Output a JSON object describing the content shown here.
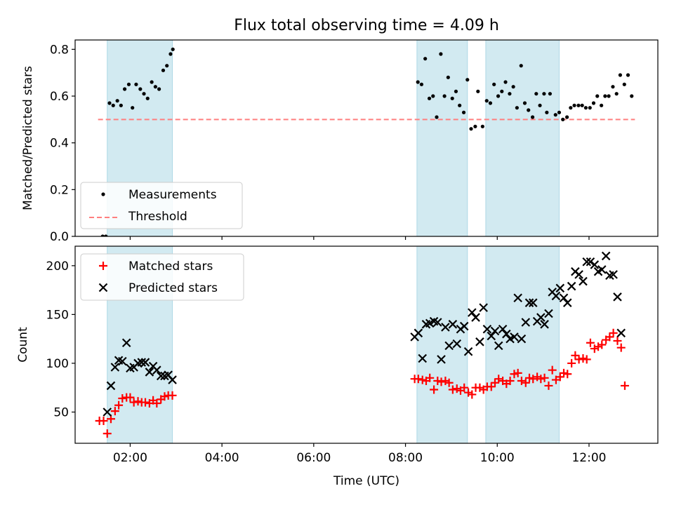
{
  "title": "Flux total observing time = 4.09 h",
  "colors": {
    "band": "#add8e6",
    "measurement": "#000000",
    "threshold": "#ff7f7f",
    "matched": "#ff0000",
    "predicted": "#000000"
  },
  "chart_data": [
    {
      "type": "scatter",
      "ylabel": "Matched/Predicted stars",
      "xlim": [
        0.8,
        13.5
      ],
      "ylim": [
        0,
        0.84
      ],
      "yticks": [
        0,
        0.2,
        0.4,
        0.6,
        0.8
      ],
      "ytick_labels": [
        "0.0",
        "0.2",
        "0.4",
        "0.6",
        "0.8"
      ],
      "bands": [
        [
          1.5,
          2.92
        ],
        [
          8.25,
          9.35
        ],
        [
          9.75,
          11.35
        ]
      ],
      "threshold": 0.5,
      "legend": {
        "position": "lower-left",
        "entries": [
          "Measurements",
          "Threshold"
        ]
      },
      "series": [
        {
          "name": "Measurements",
          "points": [
            [
              1.4,
              0.0
            ],
            [
              1.47,
              0.0
            ],
            [
              1.55,
              0.57
            ],
            [
              1.63,
              0.56
            ],
            [
              1.72,
              0.58
            ],
            [
              1.8,
              0.56
            ],
            [
              1.88,
              0.63
            ],
            [
              1.97,
              0.65
            ],
            [
              2.05,
              0.55
            ],
            [
              2.13,
              0.65
            ],
            [
              2.22,
              0.63
            ],
            [
              2.3,
              0.61
            ],
            [
              2.38,
              0.59
            ],
            [
              2.47,
              0.66
            ],
            [
              2.55,
              0.64
            ],
            [
              2.63,
              0.63
            ],
            [
              2.72,
              0.71
            ],
            [
              2.8,
              0.73
            ],
            [
              2.88,
              0.78
            ],
            [
              2.93,
              0.8
            ],
            [
              8.27,
              0.66
            ],
            [
              8.35,
              0.65
            ],
            [
              8.43,
              0.76
            ],
            [
              8.52,
              0.59
            ],
            [
              8.6,
              0.6
            ],
            [
              8.68,
              0.51
            ],
            [
              8.77,
              0.78
            ],
            [
              8.85,
              0.6
            ],
            [
              8.93,
              0.68
            ],
            [
              9.02,
              0.59
            ],
            [
              9.1,
              0.62
            ],
            [
              9.18,
              0.56
            ],
            [
              9.27,
              0.53
            ],
            [
              9.35,
              0.67
            ],
            [
              9.43,
              0.46
            ],
            [
              9.52,
              0.47
            ],
            [
              9.58,
              0.62
            ],
            [
              9.68,
              0.47
            ],
            [
              9.77,
              0.58
            ],
            [
              9.85,
              0.57
            ],
            [
              9.93,
              0.65
            ],
            [
              10.02,
              0.6
            ],
            [
              10.1,
              0.62
            ],
            [
              10.18,
              0.66
            ],
            [
              10.27,
              0.61
            ],
            [
              10.35,
              0.64
            ],
            [
              10.43,
              0.55
            ],
            [
              10.52,
              0.73
            ],
            [
              10.6,
              0.57
            ],
            [
              10.68,
              0.54
            ],
            [
              10.77,
              0.51
            ],
            [
              10.85,
              0.61
            ],
            [
              10.93,
              0.56
            ],
            [
              11.02,
              0.61
            ],
            [
              11.08,
              0.53
            ],
            [
              11.15,
              0.61
            ],
            [
              11.27,
              0.52
            ],
            [
              11.35,
              0.53
            ],
            [
              11.43,
              0.5
            ],
            [
              11.52,
              0.51
            ],
            [
              11.6,
              0.55
            ],
            [
              11.68,
              0.56
            ],
            [
              11.77,
              0.56
            ],
            [
              11.85,
              0.56
            ],
            [
              11.93,
              0.55
            ],
            [
              12.02,
              0.55
            ],
            [
              12.1,
              0.57
            ],
            [
              12.18,
              0.6
            ],
            [
              12.27,
              0.56
            ],
            [
              12.35,
              0.6
            ],
            [
              12.43,
              0.6
            ],
            [
              12.52,
              0.64
            ],
            [
              12.6,
              0.61
            ],
            [
              12.68,
              0.69
            ],
            [
              12.77,
              0.65
            ],
            [
              12.85,
              0.69
            ],
            [
              12.93,
              0.6
            ]
          ]
        }
      ]
    },
    {
      "type": "scatter",
      "xlabel": "Time (UTC)",
      "ylabel": "Count",
      "xlim": [
        0.8,
        13.5
      ],
      "ylim": [
        18,
        220
      ],
      "xticks": [
        2,
        4,
        6,
        8,
        10,
        12
      ],
      "xtick_labels": [
        "02:00",
        "04:00",
        "06:00",
        "08:00",
        "10:00",
        "12:00"
      ],
      "yticks": [
        50,
        100,
        150,
        200
      ],
      "ytick_labels": [
        "50",
        "100",
        "150",
        "200"
      ],
      "bands": [
        [
          1.5,
          2.92
        ],
        [
          8.25,
          9.35
        ],
        [
          9.75,
          11.35
        ]
      ],
      "legend": {
        "position": "top-left",
        "entries": [
          "Matched stars",
          "Predicted stars"
        ]
      },
      "series": [
        {
          "name": "Matched stars",
          "marker": "+",
          "points": [
            [
              1.33,
              41
            ],
            [
              1.42,
              41
            ],
            [
              1.5,
              28
            ],
            [
              1.58,
              43
            ],
            [
              1.67,
              51
            ],
            [
              1.75,
              57
            ],
            [
              1.83,
              64
            ],
            [
              1.92,
              65
            ],
            [
              2.0,
              65
            ],
            [
              2.08,
              60
            ],
            [
              2.17,
              61
            ],
            [
              2.25,
              60
            ],
            [
              2.33,
              60
            ],
            [
              2.42,
              59
            ],
            [
              2.5,
              62
            ],
            [
              2.58,
              59
            ],
            [
              2.67,
              63
            ],
            [
              2.75,
              66
            ],
            [
              2.83,
              67
            ],
            [
              2.92,
              67
            ],
            [
              8.2,
              84
            ],
            [
              8.28,
              84
            ],
            [
              8.37,
              83
            ],
            [
              8.45,
              82
            ],
            [
              8.53,
              85
            ],
            [
              8.62,
              73
            ],
            [
              8.7,
              82
            ],
            [
              8.78,
              81
            ],
            [
              8.87,
              82
            ],
            [
              8.95,
              80
            ],
            [
              9.03,
              73
            ],
            [
              9.12,
              74
            ],
            [
              9.2,
              72
            ],
            [
              9.28,
              75
            ],
            [
              9.37,
              70
            ],
            [
              9.45,
              68
            ],
            [
              9.53,
              75
            ],
            [
              9.62,
              75
            ],
            [
              9.7,
              73
            ],
            [
              9.78,
              76
            ],
            [
              9.87,
              76
            ],
            [
              9.95,
              80
            ],
            [
              10.03,
              84
            ],
            [
              10.12,
              82
            ],
            [
              10.2,
              79
            ],
            [
              10.28,
              82
            ],
            [
              10.37,
              89
            ],
            [
              10.45,
              90
            ],
            [
              10.53,
              82
            ],
            [
              10.62,
              80
            ],
            [
              10.7,
              85
            ],
            [
              10.78,
              84
            ],
            [
              10.87,
              86
            ],
            [
              10.95,
              84
            ],
            [
              11.03,
              85
            ],
            [
              11.12,
              77
            ],
            [
              11.2,
              93
            ],
            [
              11.28,
              83
            ],
            [
              11.37,
              86
            ],
            [
              11.45,
              90
            ],
            [
              11.53,
              89
            ],
            [
              11.62,
              100
            ],
            [
              11.7,
              108
            ],
            [
              11.78,
              104
            ],
            [
              11.87,
              105
            ],
            [
              11.95,
              104
            ],
            [
              12.03,
              121
            ],
            [
              12.12,
              115
            ],
            [
              12.2,
              117
            ],
            [
              12.28,
              119
            ],
            [
              12.37,
              124
            ],
            [
              12.45,
              127
            ],
            [
              12.53,
              131
            ],
            [
              12.62,
              123
            ],
            [
              12.7,
              116
            ],
            [
              12.78,
              77
            ]
          ]
        },
        {
          "name": "Predicted stars",
          "marker": "x",
          "points": [
            [
              1.5,
              50
            ],
            [
              1.58,
              77
            ],
            [
              1.67,
              96
            ],
            [
              1.75,
              103
            ],
            [
              1.83,
              102
            ],
            [
              1.92,
              121
            ],
            [
              2.0,
              95
            ],
            [
              2.08,
              96
            ],
            [
              2.17,
              100
            ],
            [
              2.25,
              101
            ],
            [
              2.33,
              101
            ],
            [
              2.42,
              91
            ],
            [
              2.5,
              97
            ],
            [
              2.58,
              93
            ],
            [
              2.67,
              87
            ],
            [
              2.75,
              87
            ],
            [
              2.83,
              88
            ],
            [
              2.92,
              83
            ],
            [
              8.2,
              127
            ],
            [
              8.28,
              131
            ],
            [
              8.37,
              105
            ],
            [
              8.45,
              140
            ],
            [
              8.53,
              141
            ],
            [
              8.62,
              143
            ],
            [
              8.7,
              142
            ],
            [
              8.78,
              104
            ],
            [
              8.87,
              137
            ],
            [
              8.95,
              118
            ],
            [
              9.03,
              140
            ],
            [
              9.12,
              120
            ],
            [
              9.2,
              135
            ],
            [
              9.28,
              138
            ],
            [
              9.37,
              112
            ],
            [
              9.45,
              152
            ],
            [
              9.53,
              147
            ],
            [
              9.62,
              122
            ],
            [
              9.7,
              157
            ],
            [
              9.78,
              135
            ],
            [
              9.87,
              128
            ],
            [
              9.95,
              133
            ],
            [
              10.03,
              118
            ],
            [
              10.12,
              135
            ],
            [
              10.2,
              130
            ],
            [
              10.28,
              125
            ],
            [
              10.37,
              127
            ],
            [
              10.45,
              167
            ],
            [
              10.53,
              125
            ],
            [
              10.62,
              142
            ],
            [
              10.7,
              162
            ],
            [
              10.78,
              162
            ],
            [
              10.87,
              143
            ],
            [
              10.95,
              147
            ],
            [
              11.03,
              140
            ],
            [
              11.12,
              151
            ],
            [
              11.2,
              173
            ],
            [
              11.28,
              169
            ],
            [
              11.37,
              177
            ],
            [
              11.45,
              167
            ],
            [
              11.53,
              162
            ],
            [
              11.62,
              179
            ],
            [
              11.7,
              194
            ],
            [
              11.78,
              191
            ],
            [
              11.87,
              184
            ],
            [
              11.95,
              204
            ],
            [
              12.03,
              204
            ],
            [
              12.12,
              201
            ],
            [
              12.2,
              194
            ],
            [
              12.28,
              196
            ],
            [
              12.37,
              210
            ],
            [
              12.45,
              190
            ],
            [
              12.53,
              191
            ],
            [
              12.62,
              168
            ],
            [
              12.7,
              131
            ]
          ]
        }
      ]
    }
  ]
}
